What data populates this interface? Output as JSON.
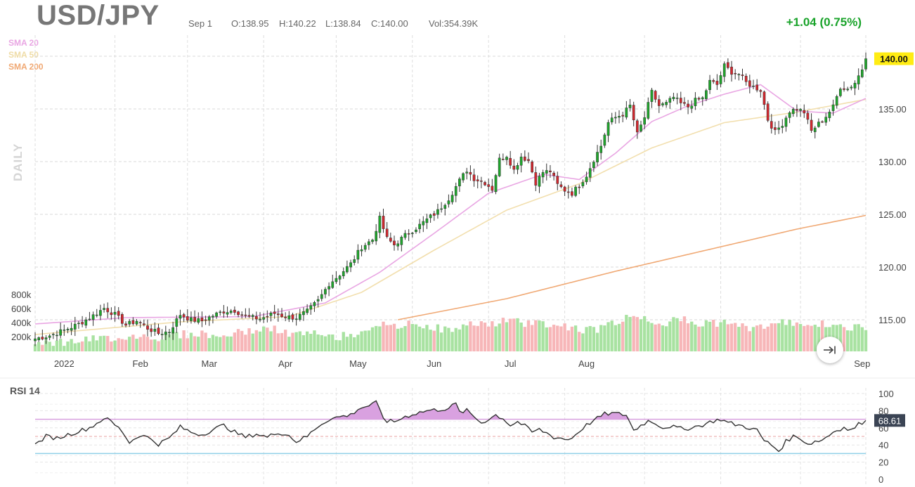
{
  "header": {
    "symbol": "USD/JPY",
    "date": "Sep 1",
    "open": "O:138.95",
    "high": "H:140.22",
    "low": "L:138.84",
    "close": "C:140.00",
    "volume": "Vol:354.39K",
    "change": "+1.04 (0.75%)",
    "change_color": "#19a32a"
  },
  "legend": [
    {
      "label": "SMA 20",
      "color": "#e9a6e3"
    },
    {
      "label": "SMA 50",
      "color": "#f2dfae"
    },
    {
      "label": "SMA 200",
      "color": "#f0a873"
    }
  ],
  "watermark": "DAILY",
  "last_price_label": "140.00",
  "rsi_label": "RSI 14",
  "rsi_value_label": "68.61",
  "end_button_icon": "skip-to-end-icon",
  "colors": {
    "up": "#1fa62c",
    "down": "#d3272e",
    "vol_up": "#a8e2a1",
    "vol_down": "#f7b6b8",
    "price_highlight": "#ffec13",
    "rsi_line": "#333333",
    "rsi_fill": "#d9a1e0",
    "overbought_line": "#d9a1e0",
    "oversold_line": "#8fd0e8",
    "midline": "#e8a0a0"
  },
  "chart_data": [
    {
      "type": "candlestick",
      "title": "USD/JPY",
      "x_tick_labels": [
        "2022",
        "Feb",
        "Mar",
        "Apr",
        "May",
        "Jun",
        "Jul",
        "Aug",
        "Sep"
      ],
      "y_tick_labels": [
        "115.00",
        "120.00",
        "125.00",
        "130.00",
        "135.00",
        "140.00"
      ],
      "ylim": [
        112,
        142
      ],
      "volume_tick_labels": [
        "200k",
        "400k",
        "600k",
        "800k"
      ],
      "volume_lim": [
        0,
        900
      ],
      "price_anchors": [
        [
          0,
          113.2
        ],
        [
          4,
          113.5
        ],
        [
          8,
          114.0
        ],
        [
          12,
          114.6
        ],
        [
          16,
          115.4
        ],
        [
          19,
          116.1
        ],
        [
          22,
          115.5
        ],
        [
          25,
          114.5
        ],
        [
          28,
          114.9
        ],
        [
          31,
          114.2
        ],
        [
          34,
          113.7
        ],
        [
          37,
          113.9
        ],
        [
          40,
          115.5
        ],
        [
          43,
          115.0
        ],
        [
          46,
          114.9
        ],
        [
          49,
          115.4
        ],
        [
          52,
          115.8
        ],
        [
          55,
          115.9
        ],
        [
          58,
          115.3
        ],
        [
          62,
          115.1
        ],
        [
          66,
          115.6
        ],
        [
          69,
          115.3
        ],
        [
          72,
          115.2
        ],
        [
          75,
          115.8
        ],
        [
          78,
          116.8
        ],
        [
          81,
          118.4
        ],
        [
          84,
          119.3
        ],
        [
          87,
          120.3
        ],
        [
          90,
          121.9
        ],
        [
          93,
          122.6
        ],
        [
          95,
          124.6
        ],
        [
          97,
          122.7
        ],
        [
          99,
          122.1
        ],
        [
          102,
          123.0
        ],
        [
          105,
          123.7
        ],
        [
          108,
          124.5
        ],
        [
          111,
          125.3
        ],
        [
          114,
          126.5
        ],
        [
          117,
          128.2
        ],
        [
          119,
          129.2
        ],
        [
          121,
          128.4
        ],
        [
          124,
          128.0
        ],
        [
          126,
          127.4
        ],
        [
          128,
          130.2
        ],
        [
          130,
          130.6
        ],
        [
          132,
          129.2
        ],
        [
          134,
          130.5
        ],
        [
          136,
          130.1
        ],
        [
          138,
          128.0
        ],
        [
          140,
          129.0
        ],
        [
          142,
          129.1
        ],
        [
          144,
          127.8
        ],
        [
          146,
          127.3
        ],
        [
          148,
          127.0
        ],
        [
          150,
          127.8
        ],
        [
          152,
          128.7
        ],
        [
          154,
          130.2
        ],
        [
          156,
          131.5
        ],
        [
          158,
          133.7
        ],
        [
          160,
          134.2
        ],
        [
          162,
          134.5
        ],
        [
          164,
          135.3
        ],
        [
          166,
          132.6
        ],
        [
          168,
          134.2
        ],
        [
          170,
          136.6
        ],
        [
          172,
          135.3
        ],
        [
          174,
          135.5
        ],
        [
          176,
          136.1
        ],
        [
          178,
          135.5
        ],
        [
          180,
          135.2
        ],
        [
          182,
          135.8
        ],
        [
          184,
          136.0
        ],
        [
          186,
          137.6
        ],
        [
          188,
          137.3
        ],
        [
          190,
          139.1
        ],
        [
          192,
          138.5
        ],
        [
          194,
          138.3
        ],
        [
          196,
          137.5
        ],
        [
          198,
          137.1
        ],
        [
          200,
          136.8
        ],
        [
          202,
          134.0
        ],
        [
          204,
          132.8
        ],
        [
          206,
          133.6
        ],
        [
          208,
          134.8
        ],
        [
          210,
          135.0
        ],
        [
          212,
          134.7
        ],
        [
          214,
          132.9
        ],
        [
          216,
          133.6
        ],
        [
          218,
          134.3
        ],
        [
          220,
          135.2
        ],
        [
          222,
          137.1
        ],
        [
          224,
          136.9
        ],
        [
          226,
          137.5
        ],
        [
          228,
          138.8
        ],
        [
          229,
          140.0
        ]
      ],
      "volume_anchors": [
        [
          0,
          160
        ],
        [
          6,
          130
        ],
        [
          12,
          150
        ],
        [
          18,
          180
        ],
        [
          22,
          200
        ],
        [
          26,
          210
        ],
        [
          30,
          230
        ],
        [
          34,
          190
        ],
        [
          38,
          250
        ],
        [
          42,
          240
        ],
        [
          46,
          260
        ],
        [
          50,
          200
        ],
        [
          54,
          250
        ],
        [
          58,
          280
        ],
        [
          62,
          320
        ],
        [
          66,
          310
        ],
        [
          70,
          250
        ],
        [
          74,
          240
        ],
        [
          78,
          250
        ],
        [
          82,
          200
        ],
        [
          86,
          230
        ],
        [
          90,
          280
        ],
        [
          94,
          400
        ],
        [
          98,
          330
        ],
        [
          102,
          380
        ],
        [
          106,
          390
        ],
        [
          110,
          340
        ],
        [
          114,
          300
        ],
        [
          118,
          340
        ],
        [
          122,
          420
        ],
        [
          126,
          380
        ],
        [
          130,
          450
        ],
        [
          134,
          400
        ],
        [
          138,
          420
        ],
        [
          142,
          380
        ],
        [
          146,
          360
        ],
        [
          150,
          320
        ],
        [
          154,
          300
        ],
        [
          158,
          390
        ],
        [
          162,
          450
        ],
        [
          166,
          520
        ],
        [
          170,
          430
        ],
        [
          174,
          410
        ],
        [
          178,
          460
        ],
        [
          182,
          380
        ],
        [
          186,
          420
        ],
        [
          190,
          400
        ],
        [
          194,
          360
        ],
        [
          198,
          330
        ],
        [
          202,
          380
        ],
        [
          206,
          400
        ],
        [
          210,
          420
        ],
        [
          214,
          390
        ],
        [
          218,
          380
        ],
        [
          222,
          340
        ],
        [
          226,
          330
        ],
        [
          229,
          354
        ]
      ],
      "rsi_anchors": [
        [
          0,
          40
        ],
        [
          3,
          50
        ],
        [
          6,
          48
        ],
        [
          9,
          52
        ],
        [
          12,
          56
        ],
        [
          15,
          60
        ],
        [
          18,
          68
        ],
        [
          19,
          72
        ],
        [
          21,
          67
        ],
        [
          24,
          56
        ],
        [
          26,
          43
        ],
        [
          29,
          52
        ],
        [
          32,
          47
        ],
        [
          34,
          41
        ],
        [
          37,
          48
        ],
        [
          40,
          61
        ],
        [
          43,
          55
        ],
        [
          46,
          52
        ],
        [
          49,
          58
        ],
        [
          52,
          63
        ],
        [
          55,
          55
        ],
        [
          58,
          49
        ],
        [
          61,
          53
        ],
        [
          64,
          49
        ],
        [
          67,
          55
        ],
        [
          70,
          51
        ],
        [
          72,
          44
        ],
        [
          75,
          50
        ],
        [
          78,
          62
        ],
        [
          81,
          70
        ],
        [
          84,
          73
        ],
        [
          87,
          75
        ],
        [
          89,
          82
        ],
        [
          92,
          86
        ],
        [
          94,
          89
        ],
        [
          96,
          72
        ],
        [
          97,
          68
        ],
        [
          99,
          67
        ],
        [
          102,
          73
        ],
        [
          105,
          77
        ],
        [
          108,
          80
        ],
        [
          111,
          81
        ],
        [
          114,
          83
        ],
        [
          116,
          88
        ],
        [
          117,
          78
        ],
        [
          119,
          80
        ],
        [
          121,
          73
        ],
        [
          123,
          66
        ],
        [
          125,
          70
        ],
        [
          127,
          75
        ],
        [
          129,
          71
        ],
        [
          131,
          63
        ],
        [
          133,
          67
        ],
        [
          135,
          62
        ],
        [
          137,
          55
        ],
        [
          139,
          58
        ],
        [
          141,
          54
        ],
        [
          143,
          49
        ],
        [
          145,
          48
        ],
        [
          147,
          46
        ],
        [
          149,
          52
        ],
        [
          151,
          60
        ],
        [
          153,
          66
        ],
        [
          155,
          71
        ],
        [
          157,
          76
        ],
        [
          159,
          77
        ],
        [
          161,
          76
        ],
        [
          163,
          75
        ],
        [
          165,
          57
        ],
        [
          167,
          63
        ],
        [
          169,
          68
        ],
        [
          171,
          66
        ],
        [
          173,
          60
        ],
        [
          175,
          62
        ],
        [
          177,
          60
        ],
        [
          179,
          58
        ],
        [
          181,
          61
        ],
        [
          183,
          62
        ],
        [
          185,
          65
        ],
        [
          187,
          68
        ],
        [
          189,
          70
        ],
        [
          191,
          66
        ],
        [
          193,
          64
        ],
        [
          195,
          62
        ],
        [
          197,
          60
        ],
        [
          199,
          57
        ],
        [
          201,
          45
        ],
        [
          203,
          40
        ],
        [
          205,
          33
        ],
        [
          207,
          44
        ],
        [
          209,
          50
        ],
        [
          211,
          48
        ],
        [
          213,
          41
        ],
        [
          215,
          44
        ],
        [
          217,
          46
        ],
        [
          219,
          52
        ],
        [
          221,
          58
        ],
        [
          223,
          60
        ],
        [
          225,
          57
        ],
        [
          227,
          64
        ],
        [
          229,
          68.61
        ]
      ],
      "candle_count": 230,
      "sma_20": [
        [
          0,
          114.6
        ],
        [
          25,
          115.2
        ],
        [
          60,
          115.3
        ],
        [
          80,
          116.6
        ],
        [
          95,
          119.5
        ],
        [
          110,
          123.2
        ],
        [
          125,
          127.0
        ],
        [
          140,
          128.8
        ],
        [
          150,
          128.3
        ],
        [
          160,
          130.8
        ],
        [
          170,
          133.8
        ],
        [
          180,
          135.3
        ],
        [
          190,
          136.4
        ],
        [
          200,
          137.3
        ],
        [
          210,
          134.8
        ],
        [
          220,
          134.6
        ],
        [
          229,
          136.0
        ]
      ],
      "sma_50": [
        [
          0,
          113.6
        ],
        [
          40,
          114.8
        ],
        [
          70,
          115.3
        ],
        [
          90,
          117.6
        ],
        [
          110,
          121.6
        ],
        [
          130,
          125.4
        ],
        [
          150,
          127.9
        ],
        [
          170,
          131.3
        ],
        [
          190,
          133.7
        ],
        [
          210,
          134.7
        ],
        [
          229,
          135.9
        ]
      ],
      "sma_200": [
        [
          100,
          115.0
        ],
        [
          130,
          117.0
        ],
        [
          160,
          119.6
        ],
        [
          190,
          122.0
        ],
        [
          210,
          123.6
        ],
        [
          229,
          124.9
        ]
      ],
      "rsi": {
        "ylim": [
          0,
          100
        ],
        "tick_labels": [
          "0",
          "20",
          "40",
          "60",
          "80",
          "100"
        ],
        "overbought": 70,
        "oversold": 30,
        "midline": 50,
        "last": 68.61
      }
    }
  ]
}
